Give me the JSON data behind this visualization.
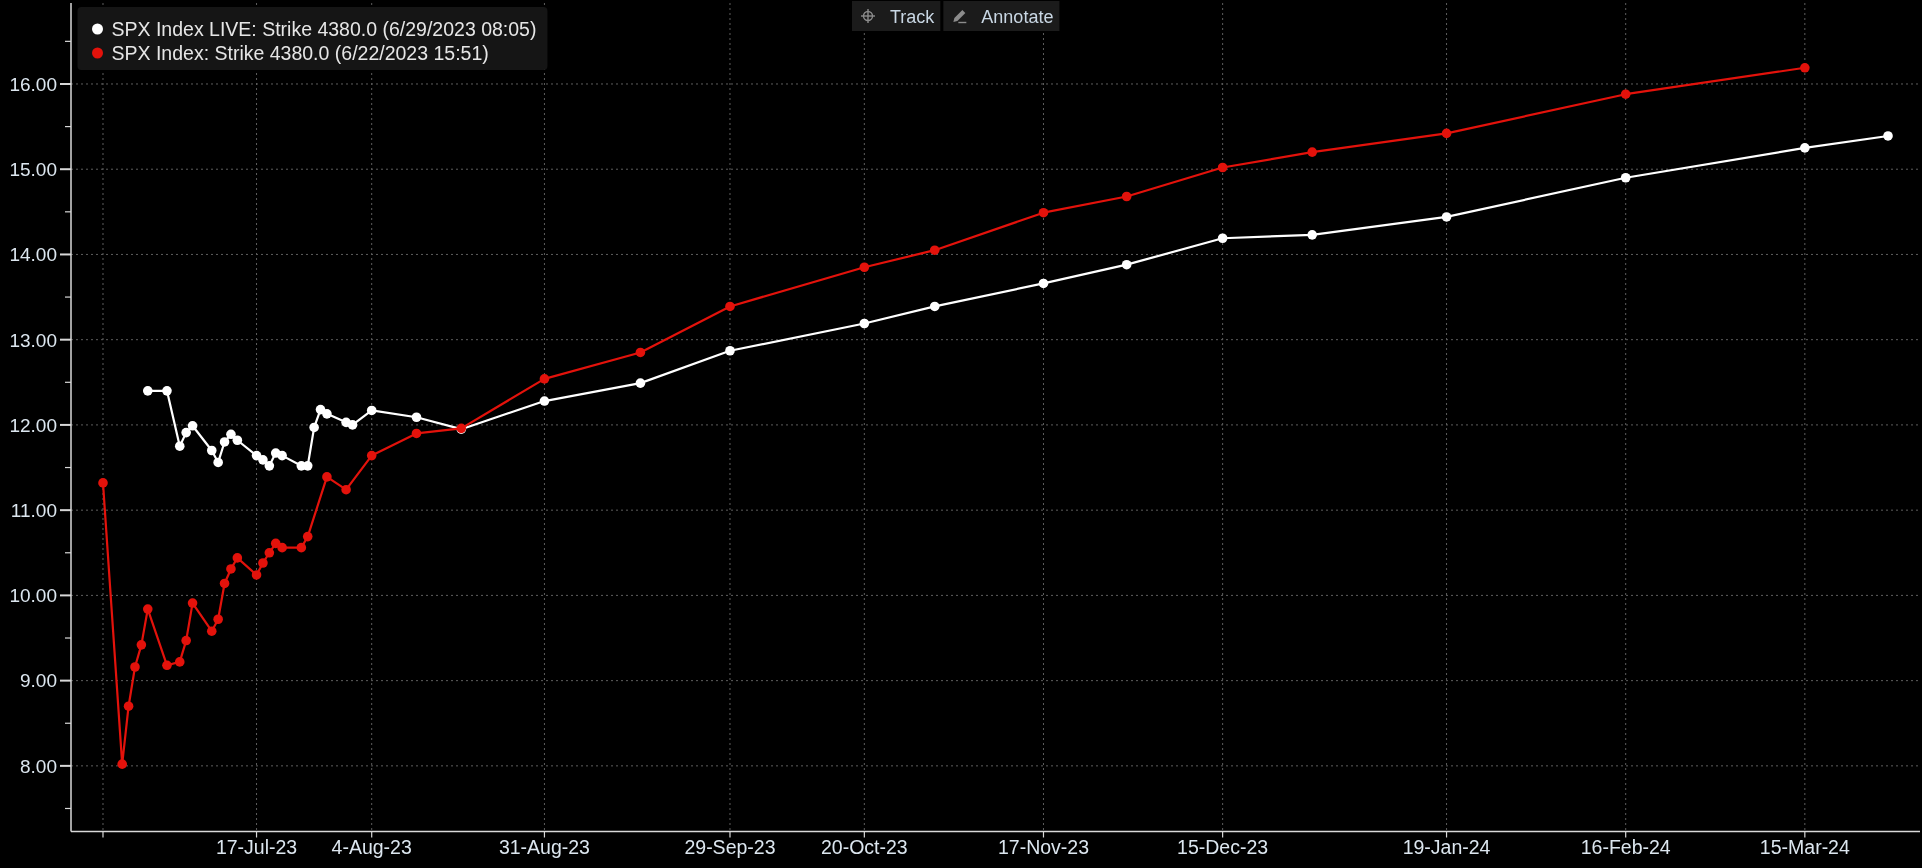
{
  "chart_data": {
    "type": "line",
    "series": [
      {
        "name": "SPX Index LIVE: Strike 4380.0 (6/29/2023 08:05)",
        "color": "#ffffff",
        "x": [
          "2023-06-30",
          "2023-07-03",
          "2023-07-05",
          "2023-07-06",
          "2023-07-07",
          "2023-07-10",
          "2023-07-11",
          "2023-07-12",
          "2023-07-13",
          "2023-07-14",
          "2023-07-17",
          "2023-07-18",
          "2023-07-19",
          "2023-07-20",
          "2023-07-21",
          "2023-07-24",
          "2023-07-25",
          "2023-07-26",
          "2023-07-27",
          "2023-07-28",
          "2023-07-31",
          "2023-08-01",
          "2023-08-04",
          "2023-08-11",
          "2023-08-18",
          "2023-08-31",
          "2023-09-15",
          "2023-09-29",
          "2023-10-20",
          "2023-10-31",
          "2023-11-17",
          "2023-11-30",
          "2023-12-15",
          "2023-12-29",
          "2024-01-19",
          "2024-02-16",
          "2024-03-15",
          "2024-03-28"
        ],
        "values": [
          12.4,
          12.4,
          11.75,
          11.91,
          11.99,
          11.7,
          11.56,
          11.8,
          11.89,
          11.82,
          11.64,
          11.59,
          11.52,
          11.67,
          11.64,
          11.52,
          11.52,
          11.97,
          12.18,
          12.13,
          12.03,
          12.0,
          12.17,
          12.09,
          11.95,
          12.28,
          12.49,
          12.87,
          13.19,
          13.39,
          13.66,
          13.88,
          14.19,
          14.23,
          14.44,
          14.9,
          15.25,
          15.39
        ]
      },
      {
        "name": "SPX Index: Strike 4380.0 (6/22/2023 15:51)",
        "color": "#e3120b",
        "x": [
          "2023-06-23",
          "2023-06-26",
          "2023-06-27",
          "2023-06-28",
          "2023-06-29",
          "2023-06-30",
          "2023-07-03",
          "2023-07-05",
          "2023-07-06",
          "2023-07-07",
          "2023-07-10",
          "2023-07-11",
          "2023-07-12",
          "2023-07-13",
          "2023-07-14",
          "2023-07-17",
          "2023-07-18",
          "2023-07-19",
          "2023-07-20",
          "2023-07-21",
          "2023-07-24",
          "2023-07-25",
          "2023-07-28",
          "2023-07-31",
          "2023-08-04",
          "2023-08-11",
          "2023-08-18",
          "2023-08-31",
          "2023-09-15",
          "2023-09-29",
          "2023-10-20",
          "2023-10-31",
          "2023-11-17",
          "2023-11-30",
          "2023-12-15",
          "2023-12-29",
          "2024-01-19",
          "2024-02-16",
          "2024-03-15"
        ],
        "values": [
          11.32,
          8.02,
          8.7,
          9.16,
          9.42,
          9.84,
          9.18,
          9.22,
          9.47,
          9.91,
          9.58,
          9.72,
          10.14,
          10.31,
          10.44,
          10.24,
          10.38,
          10.5,
          10.61,
          10.56,
          10.56,
          10.69,
          11.39,
          11.24,
          11.64,
          11.9,
          11.96,
          12.54,
          12.85,
          13.39,
          13.85,
          14.05,
          14.49,
          14.68,
          15.02,
          15.2,
          15.42,
          15.88,
          16.19
        ]
      }
    ],
    "xlim": [
      "2023-06-18",
      "2024-04-02"
    ],
    "xticks": [
      {
        "value": "2023-06-23",
        "label": null
      },
      {
        "value": "2023-07-17",
        "label": "17-Jul-23"
      },
      {
        "value": "2023-08-04",
        "label": "4-Aug-23"
      },
      {
        "value": "2023-08-31",
        "label": "31-Aug-23"
      },
      {
        "value": "2023-09-29",
        "label": "29-Sep-23"
      },
      {
        "value": "2023-10-20",
        "label": "20-Oct-23"
      },
      {
        "value": "2023-11-17",
        "label": "17-Nov-23"
      },
      {
        "value": "2023-12-15",
        "label": "15-Dec-23"
      },
      {
        "value": "2024-01-19",
        "label": "19-Jan-24"
      },
      {
        "value": "2024-02-16",
        "label": "16-Feb-24"
      },
      {
        "value": "2024-03-15",
        "label": "15-Mar-24"
      }
    ],
    "ylim": [
      7.23,
      16.95
    ],
    "yticks": [
      {
        "value": 7.5,
        "label": null
      },
      {
        "value": 8,
        "label": "8.00"
      },
      {
        "value": 8.5,
        "label": null
      },
      {
        "value": 9,
        "label": "9.00"
      },
      {
        "value": 9.5,
        "label": null
      },
      {
        "value": 10,
        "label": "10.00"
      },
      {
        "value": 10.5,
        "label": null
      },
      {
        "value": 11,
        "label": "11.00"
      },
      {
        "value": 11.5,
        "label": null
      },
      {
        "value": 12,
        "label": "12.00"
      },
      {
        "value": 12.5,
        "label": null
      },
      {
        "value": 13,
        "label": "13.00"
      },
      {
        "value": 13.5,
        "label": null
      },
      {
        "value": 14,
        "label": "14.00"
      },
      {
        "value": 14.5,
        "label": null
      },
      {
        "value": 15,
        "label": "15.00"
      },
      {
        "value": 15.5,
        "label": null
      },
      {
        "value": 16,
        "label": "16.00"
      },
      {
        "value": 16.5,
        "label": null
      }
    ],
    "grid": true,
    "legend": "top left",
    "marker": "circle",
    "line_style": "solid",
    "annotations": [
      "Track",
      "Annotate"
    ]
  }
}
